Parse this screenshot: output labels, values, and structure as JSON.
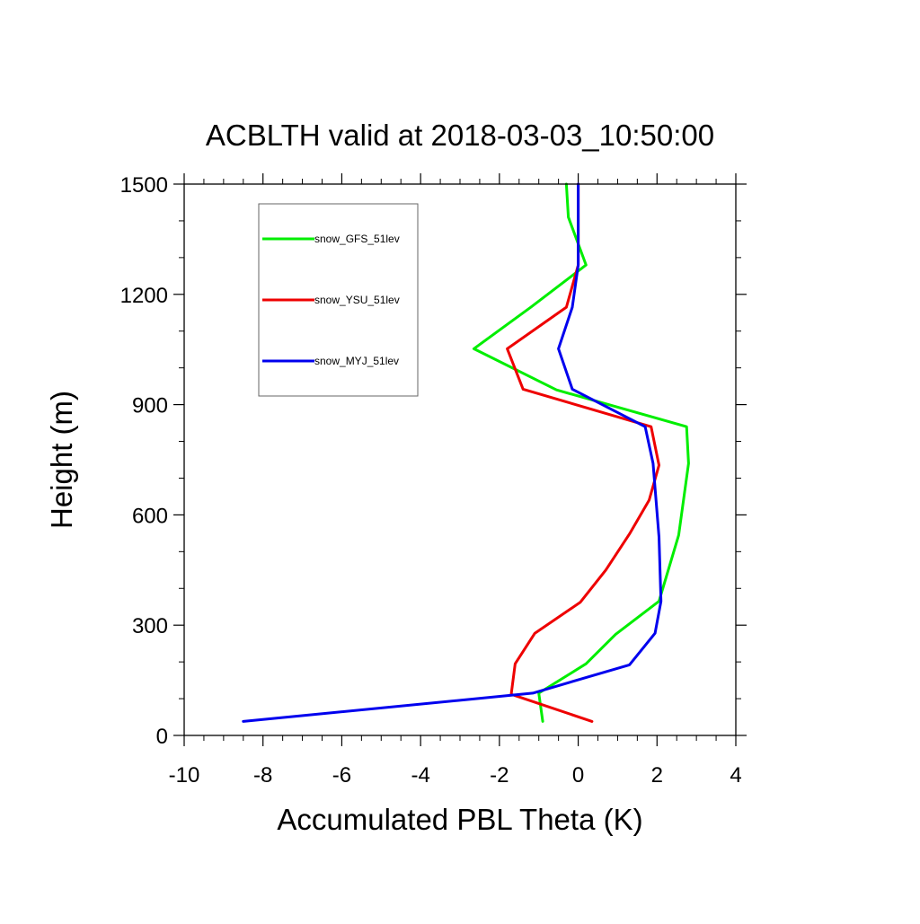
{
  "chart_data": {
    "type": "line",
    "title": "ACBLTH valid at 2018-03-03_10:50:00",
    "xlabel": "Accumulated PBL Theta (K)",
    "ylabel": "Height (m)",
    "xlim": [
      -10,
      4
    ],
    "ylim": [
      0,
      1500
    ],
    "x_ticks": [
      -10,
      -8,
      -6,
      -4,
      -2,
      0,
      2,
      4
    ],
    "x_tick_labels": [
      "-10",
      "-8",
      "-6",
      "-4",
      "-2",
      "0",
      "2",
      "4"
    ],
    "y_ticks": [
      0,
      300,
      600,
      900,
      1200,
      1500
    ],
    "y_tick_labels": [
      "0",
      "300",
      "600",
      "900",
      "1200",
      "1500"
    ],
    "grid": false,
    "legend_position": "top-left inside plot",
    "series": [
      {
        "name": "snow_GFS_51lev",
        "color": "#00ee00",
        "points": [
          [
            -0.9,
            38
          ],
          [
            -1.0,
            115
          ],
          [
            0.2,
            195
          ],
          [
            0.95,
            275
          ],
          [
            2.05,
            365
          ],
          [
            2.55,
            545
          ],
          [
            2.8,
            740
          ],
          [
            2.75,
            840
          ],
          [
            -0.55,
            940
          ],
          [
            -2.65,
            1052
          ],
          [
            -1.2,
            1165
          ],
          [
            0.2,
            1280
          ],
          [
            -0.25,
            1410
          ],
          [
            -0.3,
            1500
          ]
        ]
      },
      {
        "name": "snow_YSU_51lev",
        "color": "#ee0000",
        "points": [
          [
            0.35,
            38
          ],
          [
            -1.7,
            112
          ],
          [
            -1.6,
            195
          ],
          [
            -1.1,
            278
          ],
          [
            0.05,
            362
          ],
          [
            0.7,
            450
          ],
          [
            1.3,
            548
          ],
          [
            1.8,
            640
          ],
          [
            2.05,
            735
          ],
          [
            1.85,
            840
          ],
          [
            -1.4,
            942
          ],
          [
            -1.8,
            1052
          ],
          [
            -0.3,
            1165
          ],
          [
            0,
            1280
          ],
          [
            0,
            1500
          ]
        ]
      },
      {
        "name": "snow_MYJ_51lev",
        "color": "#0000ee",
        "points": [
          [
            -8.5,
            38
          ],
          [
            -1.15,
            115
          ],
          [
            1.3,
            192
          ],
          [
            1.95,
            278
          ],
          [
            2.1,
            365
          ],
          [
            2.05,
            540
          ],
          [
            1.9,
            740
          ],
          [
            1.7,
            840
          ],
          [
            -0.15,
            942
          ],
          [
            -0.5,
            1052
          ],
          [
            -0.15,
            1165
          ],
          [
            0,
            1280
          ],
          [
            0,
            1500
          ]
        ]
      }
    ]
  }
}
